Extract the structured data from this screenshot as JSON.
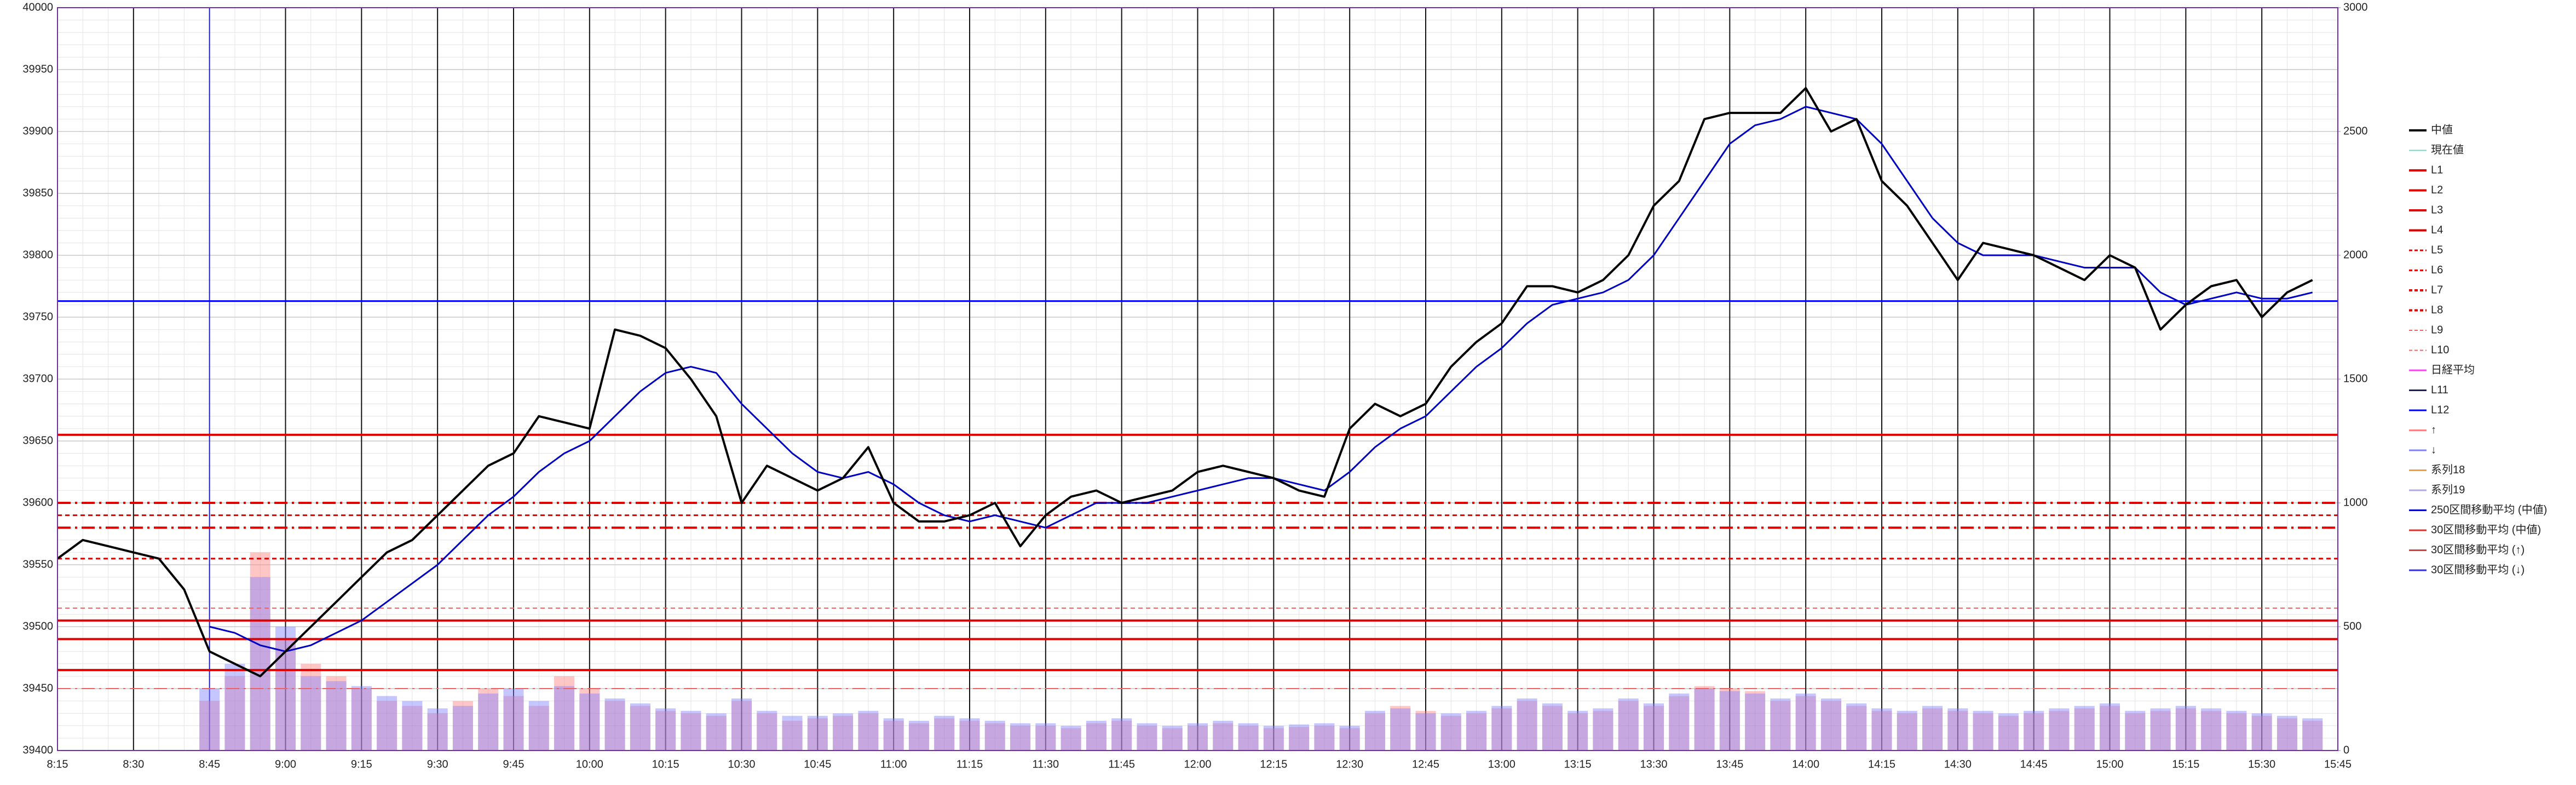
{
  "chart_data": {
    "type": "line",
    "categories": [
      "8:15",
      null,
      null,
      "8:30",
      null,
      null,
      "8:45",
      null,
      null,
      "9:00",
      null,
      null,
      "9:15",
      null,
      null,
      "9:30",
      null,
      null,
      "9:45",
      null,
      null,
      "10:00",
      null,
      null,
      "10:15",
      null,
      null,
      "10:30",
      null,
      null,
      "10:45",
      null,
      null,
      "11:00",
      null,
      null,
      "11:15",
      null,
      null,
      "11:30",
      null,
      null,
      "11:45",
      null,
      null,
      "12:00",
      null,
      null,
      "12:15",
      null,
      null,
      "12:30",
      null,
      null,
      "12:45",
      null,
      null,
      "13:00",
      null,
      null,
      "13:15",
      null,
      null,
      "13:30",
      null,
      null,
      "13:45",
      null,
      null,
      "14:00",
      null,
      null,
      "14:15",
      null,
      null,
      "14:30",
      null,
      null,
      "14:45",
      null,
      null,
      "15:00",
      null,
      null,
      "15:15",
      null,
      null,
      "15:30",
      null,
      null,
      "15:45"
    ],
    "ylim": [
      39400,
      40000
    ],
    "yticks": [
      39400,
      39450,
      39500,
      39550,
      39600,
      39650,
      39700,
      39750,
      39800,
      39850,
      39900,
      39950,
      40000
    ],
    "y2lim": [
      0,
      3000
    ],
    "y2ticks": [
      0,
      500,
      1000,
      1500,
      2000,
      2500,
      3000
    ],
    "grid": true,
    "legend": "right",
    "series": [
      {
        "name": "中値",
        "color": "#000000",
        "width": 4,
        "values": [
          39555,
          39570,
          39565,
          39560,
          39555,
          39530,
          39480,
          39470,
          39460,
          39480,
          39500,
          39520,
          39540,
          39560,
          39570,
          39590,
          39610,
          39630,
          39640,
          39670,
          39665,
          39660,
          39740,
          39735,
          39725,
          39700,
          39670,
          39600,
          39630,
          39620,
          39610,
          39620,
          39645,
          39600,
          39585,
          39585,
          39590,
          39600,
          39565,
          39590,
          39605,
          39610,
          39600,
          39605,
          39610,
          39625,
          39630,
          39625,
          39620,
          39610,
          39605,
          39660,
          39680,
          39670,
          39680,
          39710,
          39730,
          39745,
          39775,
          39775,
          39770,
          39780,
          39800,
          39840,
          39860,
          39910,
          39915,
          39915,
          39915,
          39935,
          39900,
          39910,
          39860,
          39840,
          39810,
          39780,
          39810,
          39805,
          39800,
          39790,
          39780,
          39800,
          39790,
          39740,
          39760,
          39775,
          39780,
          39750,
          39770,
          39780,
          null
        ]
      },
      {
        "name": "現在値",
        "color": "#7fd0c0",
        "width": 2
      },
      {
        "name": "L1",
        "color": "#e00000",
        "width": 4,
        "level": 39655
      },
      {
        "name": "L2",
        "color": "#e00000",
        "width": 4,
        "level": 39505
      },
      {
        "name": "L3",
        "color": "#e00000",
        "width": 4,
        "level": 39490
      },
      {
        "name": "L4",
        "color": "#e00000",
        "width": 4,
        "level": 39465
      },
      {
        "name": "L5",
        "color": "#e00000",
        "width": 3,
        "dash": "8 6",
        "level": 39590
      },
      {
        "name": "L6",
        "color": "#e00000",
        "width": 3,
        "dash": "8 6",
        "level": 39555
      },
      {
        "name": "L7",
        "color": "#e00000",
        "width": 4,
        "dash": "24 8 4 8",
        "level": 39600
      },
      {
        "name": "L8",
        "color": "#e00000",
        "width": 4,
        "dash": "24 8 4 8",
        "level": 39580
      },
      {
        "name": "L9",
        "color": "#f06060",
        "width": 2,
        "dash": "8 6",
        "level": 39515
      },
      {
        "name": "L10",
        "color": "#f06060",
        "width": 2,
        "dash": "24 8 4 8",
        "level": 39450
      },
      {
        "name": "日経平均",
        "color": "#ff40ff",
        "width": 3
      },
      {
        "name": "L11",
        "color": "#202060",
        "width": 3
      },
      {
        "name": "L12",
        "color": "#0000ff",
        "width": 3,
        "level": 39763
      },
      {
        "name": "↑",
        "color": "#ff8080",
        "width": 3,
        "axis": "y2",
        "bars": true,
        "values": [
          null,
          null,
          null,
          null,
          null,
          null,
          200,
          300,
          800,
          450,
          350,
          300,
          250,
          200,
          180,
          150,
          200,
          250,
          220,
          180,
          300,
          250,
          200,
          180,
          160,
          150,
          140,
          200,
          150,
          120,
          130,
          140,
          150,
          120,
          110,
          130,
          120,
          110,
          100,
          100,
          90,
          110,
          120,
          100,
          90,
          100,
          110,
          100,
          90,
          95,
          100,
          90,
          150,
          180,
          160,
          140,
          150,
          170,
          200,
          180,
          150,
          160,
          200,
          180,
          220,
          260,
          250,
          240,
          200,
          220,
          200,
          180,
          160,
          150,
          170,
          160,
          150,
          140,
          150,
          160,
          170,
          180,
          150,
          160,
          170,
          160,
          150,
          140,
          130,
          120,
          null
        ]
      },
      {
        "name": "↓",
        "color": "#8080ff",
        "width": 3,
        "axis": "y2",
        "bars": true,
        "values": [
          null,
          null,
          null,
          null,
          null,
          null,
          250,
          350,
          700,
          500,
          300,
          280,
          260,
          220,
          200,
          170,
          180,
          230,
          250,
          200,
          260,
          230,
          210,
          190,
          170,
          160,
          150,
          210,
          160,
          140,
          140,
          150,
          160,
          130,
          120,
          140,
          130,
          120,
          110,
          110,
          100,
          120,
          130,
          110,
          100,
          110,
          120,
          110,
          100,
          105,
          110,
          100,
          160,
          170,
          150,
          150,
          160,
          180,
          210,
          190,
          160,
          170,
          210,
          190,
          230,
          250,
          240,
          230,
          210,
          230,
          210,
          190,
          170,
          160,
          180,
          170,
          160,
          150,
          160,
          170,
          180,
          190,
          160,
          170,
          180,
          170,
          160,
          150,
          140,
          130,
          null
        ]
      },
      {
        "name": "系列18",
        "color": "#f0a040",
        "width": 3
      },
      {
        "name": "系列19",
        "color": "#b0a8e0",
        "width": 3
      },
      {
        "name": "250区間移動平均 (中値)",
        "color": "#0000c0",
        "width": 3,
        "values": [
          null,
          null,
          null,
          null,
          null,
          null,
          39500,
          39495,
          39485,
          39480,
          39485,
          39495,
          39505,
          39520,
          39535,
          39550,
          39570,
          39590,
          39605,
          39625,
          39640,
          39650,
          39670,
          39690,
          39705,
          39710,
          39705,
          39680,
          39660,
          39640,
          39625,
          39620,
          39625,
          39615,
          39600,
          39590,
          39585,
          39590,
          39585,
          39580,
          39590,
          39600,
          39600,
          39600,
          39605,
          39610,
          39615,
          39620,
          39620,
          39615,
          39610,
          39625,
          39645,
          39660,
          39670,
          39690,
          39710,
          39725,
          39745,
          39760,
          39765,
          39770,
          39780,
          39800,
          39830,
          39860,
          39890,
          39905,
          39910,
          39920,
          39915,
          39910,
          39890,
          39860,
          39830,
          39810,
          39800,
          39800,
          39800,
          39795,
          39790,
          39790,
          39790,
          39770,
          39760,
          39765,
          39770,
          39765,
          39765,
          39770,
          null
        ]
      },
      {
        "name": "30区間移動平均 (中値)",
        "color": "#e03030",
        "width": 3
      },
      {
        "name": "30区間移動平均 (↑)",
        "color": "#d04040",
        "width": 3
      },
      {
        "name": "30区間移動平均 (↓)",
        "color": "#3030e0",
        "width": 3
      }
    ]
  }
}
